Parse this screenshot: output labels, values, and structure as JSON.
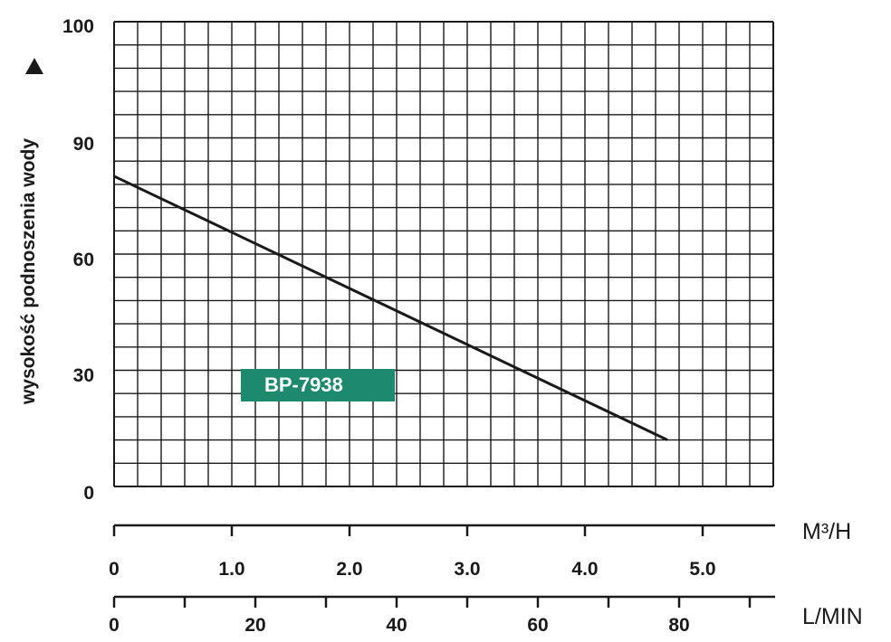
{
  "chart_data": {
    "type": "line",
    "title": "",
    "ylabel": "wysokość podnoszenia wody",
    "y_axis": {
      "ticks": [
        "0",
        "30",
        "60",
        "90",
        "100"
      ]
    },
    "x_axes": [
      {
        "unit": "M³/H",
        "ticks": [
          "0",
          "1.0",
          "2.0",
          "3.0",
          "4.0",
          "5.0"
        ]
      },
      {
        "unit": "L/MIN",
        "ticks": [
          "0",
          "20",
          "40",
          "60",
          "80"
        ]
      }
    ],
    "grid": true,
    "series": [
      {
        "name": "BP-7938",
        "color": "#1a1a1a",
        "points_m3h": [
          [
            0,
            80
          ],
          [
            4.7,
            12
          ]
        ]
      }
    ],
    "legend": {
      "label": "BP-7938",
      "color": "#1d8a6e",
      "placement": "center-left"
    }
  }
}
